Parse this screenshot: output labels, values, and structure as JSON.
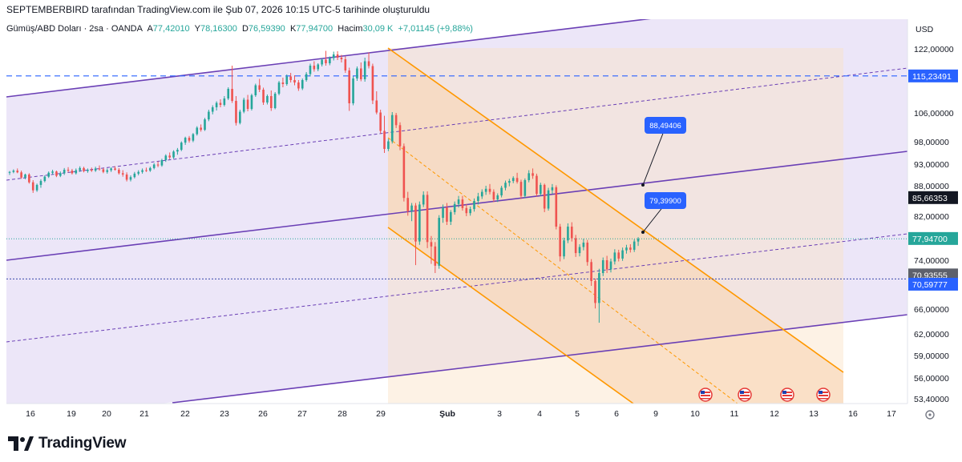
{
  "attribution": "SEPTEMBERBIRD tarafından TradingView.com ile Şub 07, 2026 10:15 UTC-5 tarihinde oluşturuldu",
  "legend": {
    "symbol": "Gümüş/ABD Doları · 2sa · OANDA",
    "open_label": "A",
    "open": "77,42010",
    "high_label": "Y",
    "high": "78,16300",
    "low_label": "D",
    "low": "76,59390",
    "close_label": "K",
    "close": "77,94700",
    "volume_label": "Hacim",
    "volume": "30,09 K",
    "change": "+7,01145 (+9,88%)"
  },
  "brand": {
    "name": "TradingView"
  },
  "chart_data": {
    "type": "candlestick",
    "currency": "USD",
    "x_labels": [
      "16",
      "19",
      "20",
      "21",
      "22",
      "23",
      "26",
      "27",
      "28",
      "29",
      "Şub",
      "3",
      "4",
      "5",
      "6",
      "9",
      "10",
      "11",
      "12",
      "13",
      "16",
      "17"
    ],
    "y_ticks": [
      "122,00000",
      "106,00000",
      "98,00000",
      "93,00000",
      "88,00000",
      "82,00000",
      "74,00000",
      "66,00000",
      "62,00000",
      "59,00000",
      "56,00000",
      "53,40000"
    ],
    "y_range": [
      53.4,
      125
    ],
    "price_tags": [
      {
        "label": "115,23491",
        "value": 115.23491,
        "bg": "#2962ff",
        "fg": "#ffffff"
      },
      {
        "label": "85,66353",
        "value": 85.66353,
        "bg": "#131722",
        "fg": "#ffffff"
      },
      {
        "label": "77,94700",
        "value": 77.947,
        "bg": "#26a69a",
        "fg": "#ffffff"
      },
      {
        "label": "70,93555",
        "value": 70.93555,
        "bg": "#5d606b",
        "fg": "#ffffff"
      },
      {
        "label": "70,59777",
        "value": 70.59777,
        "bg": "#2962ff",
        "fg": "#ffffff"
      }
    ],
    "callouts": [
      {
        "label": "88,49406",
        "value": 88.49406
      },
      {
        "label": "79,39900",
        "value": 79.399
      }
    ],
    "horizontal_levels": [
      115.23491,
      70.93555
    ],
    "candles": [
      [
        91.0,
        91.4,
        90.5,
        91.2
      ],
      [
        91.2,
        91.8,
        90.9,
        91.5
      ],
      [
        91.5,
        92.0,
        90.9,
        91.1
      ],
      [
        91.1,
        91.5,
        89.6,
        89.9
      ],
      [
        89.9,
        90.8,
        89.5,
        90.6
      ],
      [
        90.6,
        90.9,
        88.5,
        88.8
      ],
      [
        88.8,
        89.3,
        86.6,
        87.1
      ],
      [
        87.1,
        88.5,
        86.8,
        88.2
      ],
      [
        88.2,
        89.5,
        87.6,
        89.1
      ],
      [
        89.1,
        90.4,
        88.8,
        90.1
      ],
      [
        90.1,
        91.3,
        89.8,
        91.0
      ],
      [
        91.0,
        91.7,
        90.6,
        91.3
      ],
      [
        91.3,
        91.5,
        90.0,
        90.3
      ],
      [
        90.3,
        91.3,
        90.0,
        90.9
      ],
      [
        90.9,
        92.1,
        90.5,
        91.7
      ],
      [
        91.7,
        92.3,
        91.1,
        91.5
      ],
      [
        91.5,
        91.9,
        90.6,
        90.9
      ],
      [
        90.9,
        92.0,
        90.6,
        91.6
      ],
      [
        91.6,
        92.5,
        91.2,
        92.1
      ],
      [
        92.1,
        92.4,
        91.1,
        91.4
      ],
      [
        91.4,
        92.0,
        91.0,
        91.7
      ],
      [
        91.7,
        92.2,
        91.2,
        91.5
      ],
      [
        91.5,
        92.4,
        91.2,
        92.0
      ],
      [
        92.0,
        92.7,
        91.5,
        91.8
      ],
      [
        91.8,
        92.1,
        90.9,
        91.2
      ],
      [
        91.2,
        92.0,
        90.8,
        91.6
      ],
      [
        91.6,
        92.3,
        91.2,
        92.0
      ],
      [
        92.0,
        92.5,
        91.5,
        91.7
      ],
      [
        91.7,
        92.1,
        90.6,
        90.9
      ],
      [
        90.9,
        91.6,
        90.1,
        90.6
      ],
      [
        90.6,
        91.1,
        89.0,
        89.4
      ],
      [
        89.4,
        90.4,
        89.0,
        90.0
      ],
      [
        90.0,
        91.2,
        89.7,
        90.8
      ],
      [
        90.8,
        91.6,
        90.4,
        91.2
      ],
      [
        91.2,
        92.0,
        90.8,
        91.6
      ],
      [
        91.6,
        92.2,
        91.2,
        91.5
      ],
      [
        91.5,
        92.4,
        91.2,
        92.1
      ],
      [
        92.1,
        93.2,
        91.8,
        92.9
      ],
      [
        92.9,
        93.6,
        92.3,
        92.7
      ],
      [
        92.7,
        94.2,
        92.4,
        93.9
      ],
      [
        93.9,
        95.2,
        93.5,
        94.9
      ],
      [
        94.9,
        95.6,
        94.1,
        94.5
      ],
      [
        94.5,
        96.1,
        94.2,
        95.8
      ],
      [
        95.8,
        96.6,
        95.1,
        96.2
      ],
      [
        96.2,
        98.1,
        95.9,
        97.8
      ],
      [
        97.8,
        99.4,
        97.3,
        99.1
      ],
      [
        99.1,
        99.6,
        97.8,
        98.3
      ],
      [
        98.3,
        100.4,
        97.9,
        100.1
      ],
      [
        100.1,
        102.3,
        99.7,
        101.9
      ],
      [
        101.9,
        102.8,
        100.8,
        101.3
      ],
      [
        101.3,
        104.6,
        101.0,
        104.2
      ],
      [
        104.2,
        106.8,
        103.7,
        106.3
      ],
      [
        106.3,
        107.9,
        105.6,
        107.4
      ],
      [
        107.4,
        108.9,
        106.6,
        108.5
      ],
      [
        108.5,
        109.4,
        107.4,
        108.0
      ],
      [
        108.0,
        110.2,
        107.6,
        109.6
      ],
      [
        109.6,
        112.4,
        109.2,
        112.0
      ],
      [
        112.0,
        117.8,
        108.5,
        109.0
      ],
      [
        109.0,
        110.2,
        102.5,
        103.2
      ],
      [
        103.2,
        106.8,
        102.8,
        106.3
      ],
      [
        106.3,
        109.8,
        105.9,
        109.3
      ],
      [
        109.3,
        110.5,
        106.4,
        107.0
      ],
      [
        107.0,
        110.8,
        106.6,
        110.4
      ],
      [
        110.4,
        113.3,
        110.0,
        112.9
      ],
      [
        112.9,
        114.5,
        111.2,
        111.8
      ],
      [
        111.8,
        112.3,
        108.0,
        108.6
      ],
      [
        108.6,
        110.6,
        108.1,
        110.2
      ],
      [
        110.2,
        111.6,
        106.5,
        107.2
      ],
      [
        107.2,
        111.2,
        106.9,
        110.8
      ],
      [
        110.8,
        114.0,
        110.4,
        113.6
      ],
      [
        113.6,
        114.8,
        112.4,
        113.2
      ],
      [
        113.2,
        115.6,
        112.8,
        115.1
      ],
      [
        115.1,
        116.0,
        113.6,
        114.2
      ],
      [
        114.2,
        115.4,
        112.9,
        113.6
      ],
      [
        113.6,
        114.2,
        111.5,
        112.1
      ],
      [
        112.1,
        114.6,
        111.7,
        114.2
      ],
      [
        114.2,
        116.2,
        113.8,
        115.7
      ],
      [
        115.7,
        118.3,
        115.1,
        117.8
      ],
      [
        117.8,
        118.9,
        116.3,
        116.9
      ],
      [
        116.9,
        118.4,
        116.4,
        118.1
      ],
      [
        118.1,
        119.6,
        117.6,
        119.3
      ],
      [
        119.3,
        121.5,
        117.8,
        118.4
      ],
      [
        118.4,
        120.1,
        117.9,
        119.7
      ],
      [
        119.7,
        121.3,
        119.1,
        120.6
      ],
      [
        120.6,
        121.4,
        119.2,
        119.8
      ],
      [
        119.8,
        120.5,
        118.6,
        119.4
      ],
      [
        119.4,
        120.1,
        116.0,
        116.6
      ],
      [
        116.6,
        117.3,
        106.5,
        108.4
      ],
      [
        108.4,
        115.2,
        107.9,
        114.6
      ],
      [
        114.6,
        117.6,
        114.0,
        117.1
      ],
      [
        117.1,
        118.6,
        113.9,
        114.4
      ],
      [
        114.4,
        119.8,
        113.8,
        118.9
      ],
      [
        118.9,
        121.1,
        117.1,
        117.7
      ],
      [
        117.7,
        118.3,
        108.2,
        109.1
      ],
      [
        109.1,
        111.4,
        105.6,
        106.1
      ],
      [
        106.1,
        106.8,
        100.2,
        101.0
      ],
      [
        101.0,
        105.2,
        95.5,
        96.4
      ],
      [
        96.4,
        98.8,
        95.9,
        98.1
      ],
      [
        98.1,
        106.2,
        97.6,
        105.4
      ],
      [
        105.4,
        106.0,
        101.8,
        102.6
      ],
      [
        102.6,
        103.4,
        96.1,
        97.0
      ],
      [
        97.0,
        97.6,
        84.9,
        85.6
      ],
      [
        85.6,
        86.8,
        82.1,
        83.0
      ],
      [
        83.0,
        84.6,
        81.1,
        84.1
      ],
      [
        84.1,
        84.6,
        73.2,
        77.4
      ],
      [
        77.4,
        84.9,
        76.8,
        84.3
      ],
      [
        84.3,
        86.9,
        83.8,
        86.2
      ],
      [
        86.2,
        86.9,
        76.2,
        77.3
      ],
      [
        77.3,
        78.4,
        73.4,
        76.5
      ],
      [
        76.5,
        77.3,
        71.9,
        73.1
      ],
      [
        73.1,
        82.2,
        72.6,
        81.7
      ],
      [
        81.7,
        84.3,
        80.8,
        83.7
      ],
      [
        83.7,
        84.6,
        80.4,
        81.0
      ],
      [
        81.0,
        83.2,
        80.4,
        82.8
      ],
      [
        82.8,
        84.9,
        82.3,
        84.4
      ],
      [
        84.4,
        86.0,
        83.7,
        85.3
      ],
      [
        85.3,
        86.0,
        83.1,
        83.6
      ],
      [
        83.6,
        84.4,
        82.0,
        82.6
      ],
      [
        82.6,
        83.9,
        82.1,
        83.4
      ],
      [
        83.4,
        85.5,
        82.9,
        85.0
      ],
      [
        85.0,
        86.6,
        84.3,
        85.9
      ],
      [
        85.9,
        87.3,
        85.4,
        86.8
      ],
      [
        86.8,
        88.0,
        86.2,
        87.4
      ],
      [
        87.4,
        88.4,
        86.3,
        86.8
      ],
      [
        86.8,
        87.3,
        84.8,
        85.3
      ],
      [
        85.3,
        86.5,
        84.8,
        86.1
      ],
      [
        86.1,
        88.0,
        85.7,
        87.6
      ],
      [
        87.6,
        89.2,
        87.1,
        88.7
      ],
      [
        88.7,
        89.6,
        87.9,
        89.1
      ],
      [
        89.1,
        90.2,
        88.6,
        89.8
      ],
      [
        89.8,
        91.0,
        88.5,
        88.9
      ],
      [
        88.9,
        89.4,
        85.4,
        86.0
      ],
      [
        86.0,
        89.7,
        85.6,
        89.3
      ],
      [
        89.3,
        91.6,
        88.8,
        90.9
      ],
      [
        90.9,
        92.0,
        89.6,
        90.3
      ],
      [
        90.3,
        90.8,
        85.9,
        86.4
      ],
      [
        86.4,
        88.7,
        86.0,
        88.2
      ],
      [
        88.2,
        88.5,
        82.8,
        83.5
      ],
      [
        83.5,
        87.6,
        83.1,
        87.1
      ],
      [
        87.1,
        88.4,
        86.4,
        87.7
      ],
      [
        87.7,
        88.1,
        79.6,
        80.1
      ],
      [
        80.1,
        80.6,
        73.8,
        74.7
      ],
      [
        74.7,
        78.1,
        74.2,
        77.6
      ],
      [
        77.6,
        80.7,
        77.1,
        80.1
      ],
      [
        80.1,
        80.9,
        77.4,
        78.0
      ],
      [
        78.0,
        78.6,
        74.6,
        75.3
      ],
      [
        75.3,
        76.9,
        74.7,
        76.4
      ],
      [
        76.4,
        77.9,
        75.8,
        77.2
      ],
      [
        77.2,
        77.7,
        73.1,
        73.7
      ],
      [
        73.7,
        74.2,
        69.8,
        70.6
      ],
      [
        70.6,
        71.0,
        66.1,
        67.0
      ],
      [
        67.0,
        72.6,
        63.8,
        71.9
      ],
      [
        71.9,
        74.5,
        71.4,
        74.0
      ],
      [
        74.0,
        74.8,
        71.9,
        72.5
      ],
      [
        72.5,
        74.3,
        72.0,
        73.8
      ],
      [
        73.8,
        76.0,
        73.3,
        75.4
      ],
      [
        75.4,
        75.9,
        73.8,
        74.3
      ],
      [
        74.3,
        76.3,
        73.9,
        75.8
      ],
      [
        75.8,
        76.8,
        75.2,
        76.3
      ],
      [
        76.3,
        76.9,
        75.4,
        75.9
      ],
      [
        75.9,
        77.8,
        75.5,
        77.4
      ],
      [
        77.4,
        78.2,
        76.6,
        77.9
      ]
    ]
  }
}
